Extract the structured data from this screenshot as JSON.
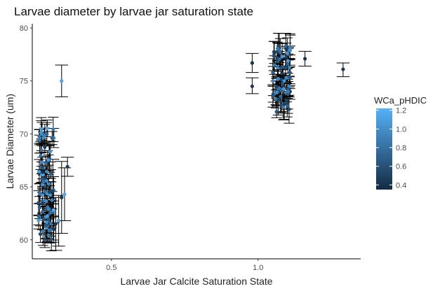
{
  "chart_data": {
    "type": "scatter",
    "title": "Larvae diameter by larvae jar saturation state",
    "xlabel": "Larvae Jar Calcite Saturation State",
    "ylabel": "Larvae Diameter (um)",
    "xlim": [
      0.23,
      1.35
    ],
    "ylim": [
      58.2,
      80.4
    ],
    "x_ticks": [
      0.5,
      1.0
    ],
    "x_tick_labels": [
      "0.5",
      "1.0"
    ],
    "y_ticks": [
      60,
      65,
      70,
      75,
      80
    ],
    "y_tick_labels": [
      "60",
      "65",
      "70",
      "75",
      "80"
    ],
    "grid": false,
    "legend": {
      "title": "WCa_pHDIC",
      "position": "right",
      "type": "colorbar",
      "range": [
        0.35,
        1.22
      ],
      "ticks": [
        0.4,
        0.6,
        0.8,
        1.0,
        1.2
      ],
      "tick_labels": [
        "0.4",
        "0.6",
        "0.8",
        "1.0",
        "1.2"
      ],
      "low_color": "#132B43",
      "high_color": "#56B1F7"
    },
    "colors": {
      "low": "#132B43",
      "high": "#56B1F7",
      "error_bar": "#000000"
    },
    "points": [
      {
        "x": 0.3,
        "y": 64.6,
        "lo": 61.6,
        "hi": 67.6,
        "c": 0.5
      },
      {
        "x": 0.31,
        "y": 61.5,
        "lo": 59.0,
        "hi": 64.0,
        "c": 0.45
      },
      {
        "x": 0.32,
        "y": 61.8,
        "lo": 59.4,
        "hi": 64.2,
        "c": 1.1
      },
      {
        "x": 0.33,
        "y": 75.0,
        "lo": 73.5,
        "hi": 76.5,
        "c": 1.15
      },
      {
        "x": 0.33,
        "y": 64.0,
        "lo": 60.6,
        "hi": 67.4,
        "c": 0.4
      },
      {
        "x": 0.34,
        "y": 64.3,
        "lo": 61.8,
        "hi": 66.8,
        "c": 1.15
      },
      {
        "x": 0.35,
        "y": 66.9,
        "lo": 66.0,
        "hi": 67.8,
        "c": 0.45
      },
      {
        "x": 0.98,
        "y": 76.7,
        "lo": 75.8,
        "hi": 77.6,
        "c": 0.4
      },
      {
        "x": 0.98,
        "y": 74.5,
        "lo": 73.8,
        "hi": 75.3,
        "c": 0.45
      },
      {
        "x": 1.16,
        "y": 77.1,
        "lo": 76.4,
        "hi": 77.8,
        "c": 0.4
      },
      {
        "x": 1.29,
        "y": 76.1,
        "lo": 75.4,
        "hi": 76.7,
        "c": 0.45
      }
    ],
    "clusters": [
      {
        "x_min": 0.25,
        "x_max": 0.305,
        "y_min": 58.7,
        "y_max": 72.0,
        "whisker_pad": 0.018,
        "c_min": 0.4,
        "c_max": 1.15,
        "count": 85
      },
      {
        "x_min": 1.05,
        "x_max": 1.11,
        "y_min": 70.8,
        "y_max": 79.5,
        "whisker_pad": 0.018,
        "c_min": 0.4,
        "c_max": 1.1,
        "count": 75
      }
    ]
  }
}
